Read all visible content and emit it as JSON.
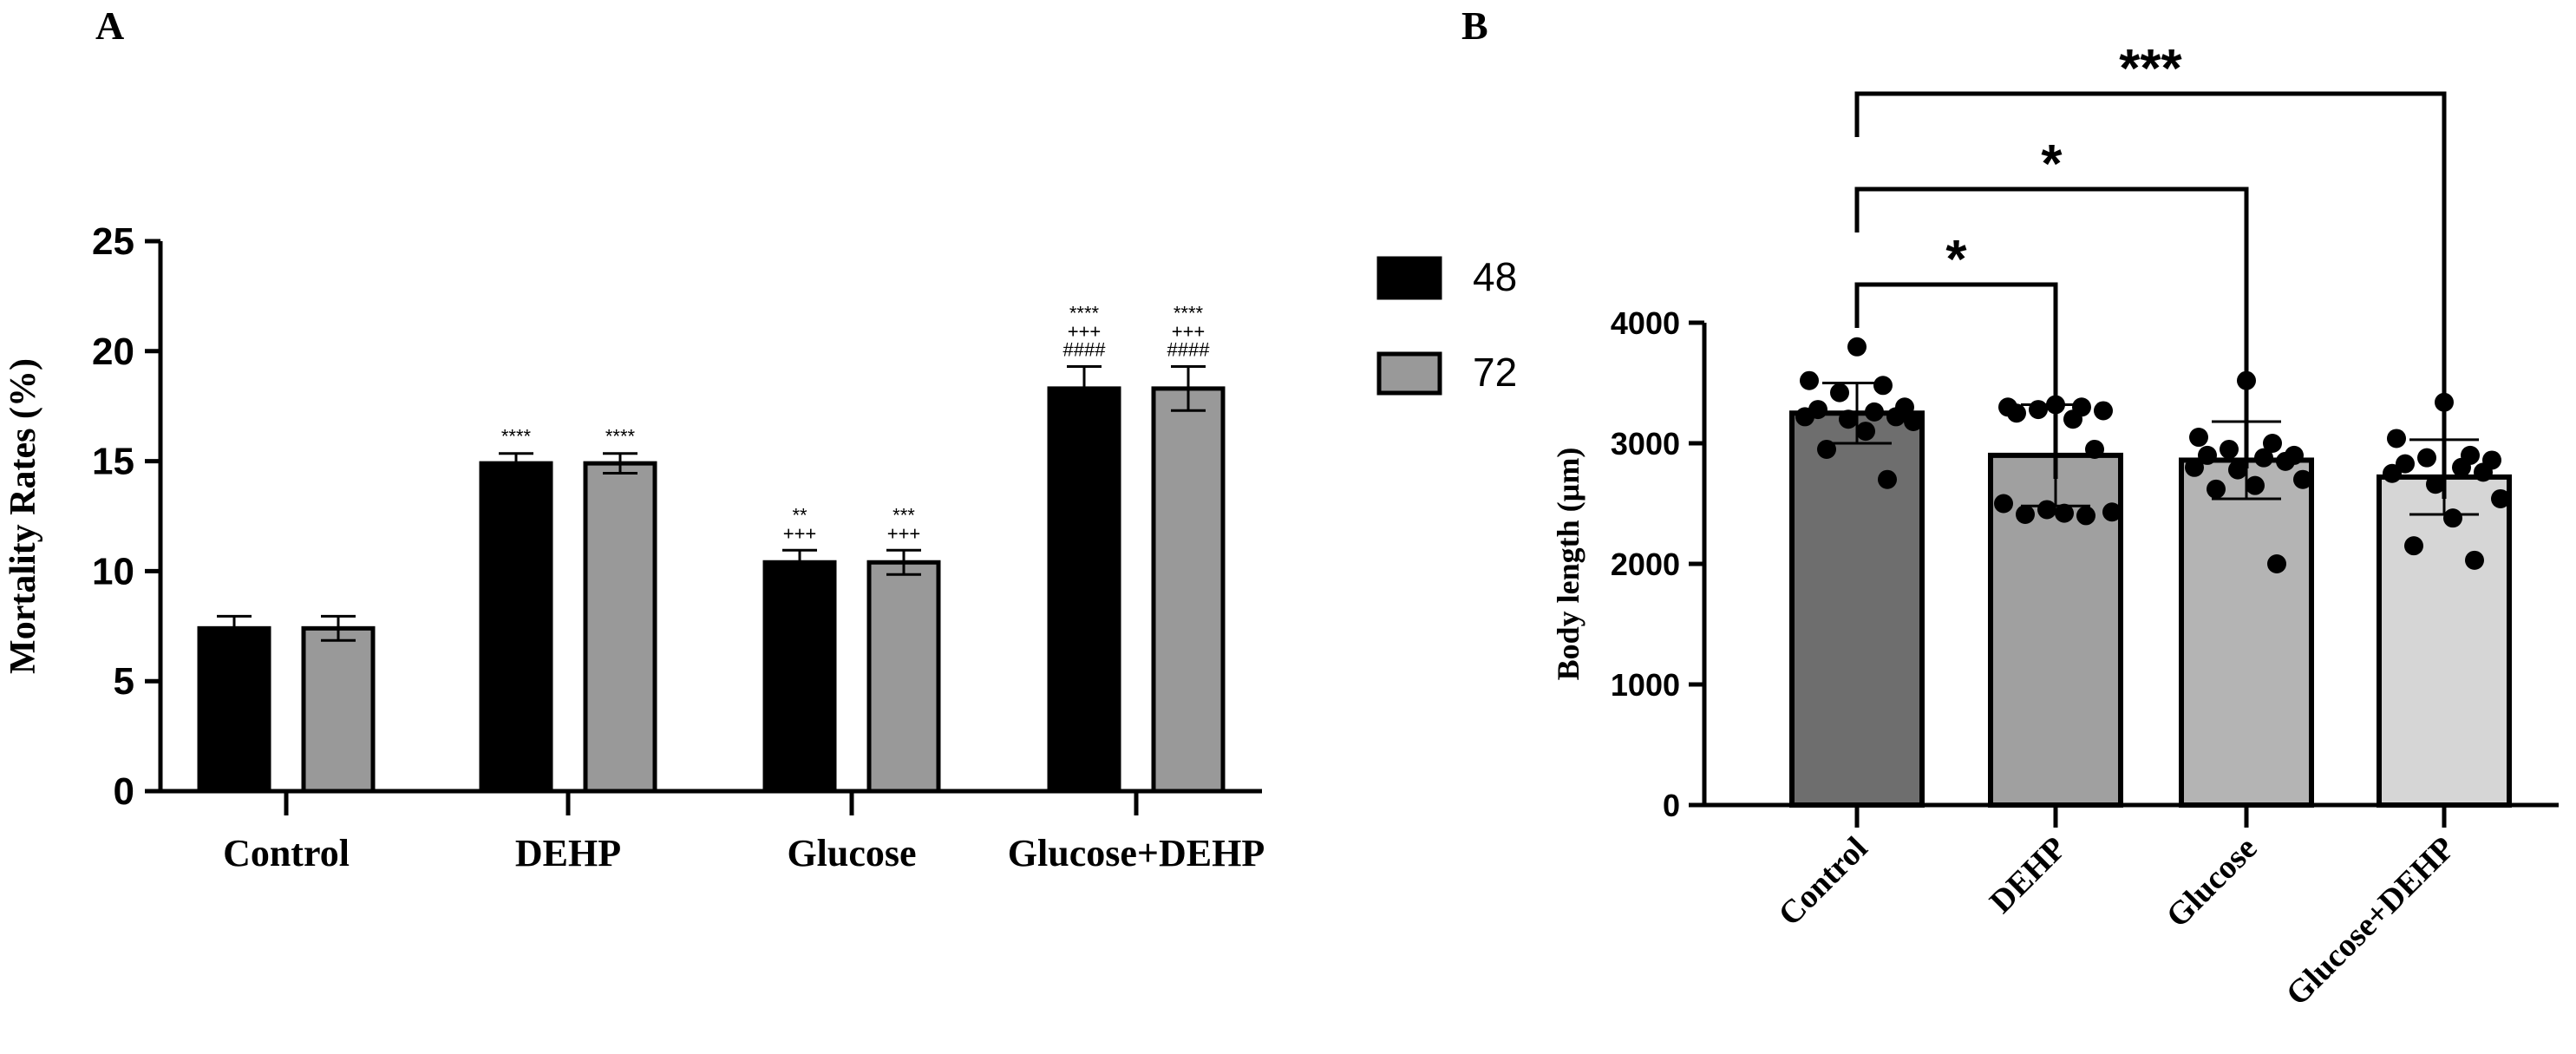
{
  "panels": {
    "a_label": "A",
    "b_label": "B"
  },
  "chart_data": [
    {
      "panel": "A",
      "type": "bar",
      "categories": [
        "Control",
        "DEHP",
        "Glucose",
        "Glucose+DEHP"
      ],
      "series": [
        {
          "name": "48",
          "values": [
            7.4,
            14.9,
            10.4,
            18.3
          ],
          "errors": [
            0.55,
            0.45,
            0.55,
            1.0
          ],
          "color": "#000000"
        },
        {
          "name": "72",
          "values": [
            7.4,
            14.9,
            10.4,
            18.3
          ],
          "errors": [
            0.55,
            0.45,
            0.55,
            1.0
          ],
          "color": "#999999"
        }
      ],
      "annotations": [
        [
          [],
          []
        ],
        [
          [
            "****"
          ],
          [
            "****"
          ]
        ],
        [
          [
            "**",
            "+++"
          ],
          [
            "***",
            "+++"
          ]
        ],
        [
          [
            "****",
            "+++",
            "####"
          ],
          [
            "****",
            "+++",
            "####"
          ]
        ]
      ],
      "ylabel": "Mortality Rates  (%)",
      "xlabel": "",
      "ylim": [
        0,
        25
      ],
      "yticks": [
        "0",
        "5",
        "10",
        "15",
        "20",
        "25"
      ],
      "legend_position": "top-right",
      "grid": false
    },
    {
      "panel": "B",
      "type": "bar",
      "categories": [
        "Control",
        "DEHP",
        "Glucose",
        "Glucose+DEHP"
      ],
      "values": [
        3250,
        2900,
        2860,
        2720
      ],
      "errors": [
        250,
        420,
        320,
        310
      ],
      "bar_colors": [
        "#6e6e6e",
        "#a0a0a0",
        "#b4b4b4",
        "#d6d6d6"
      ],
      "points": [
        [
          3800,
          3520,
          3480,
          3420,
          3300,
          3280,
          3260,
          3220,
          3220,
          3200,
          3180,
          3100,
          2950,
          2700
        ],
        [
          3320,
          3300,
          3300,
          3280,
          3270,
          3250,
          3200,
          2950,
          2500,
          2450,
          2430,
          2420,
          2410,
          2400
        ],
        [
          3520,
          3050,
          3000,
          2950,
          2900,
          2900,
          2880,
          2850,
          2800,
          2780,
          2700,
          2650,
          2620,
          2000
        ],
        [
          3340,
          3040,
          2900,
          2880,
          2860,
          2830,
          2800,
          2760,
          2750,
          2660,
          2540,
          2380,
          2150,
          2030
        ]
      ],
      "significance": [
        {
          "from": "Control",
          "to": "DEHP",
          "label": "*"
        },
        {
          "from": "Control",
          "to": "Glucose",
          "label": "*"
        },
        {
          "from": "Control",
          "to": "Glucose+DEHP",
          "label": "***"
        }
      ],
      "ylabel": "Body length (µm)",
      "xlabel": "",
      "ylim": [
        0,
        4000
      ],
      "yticks": [
        "0",
        "1000",
        "2000",
        "3000",
        "4000"
      ],
      "grid": false
    }
  ]
}
